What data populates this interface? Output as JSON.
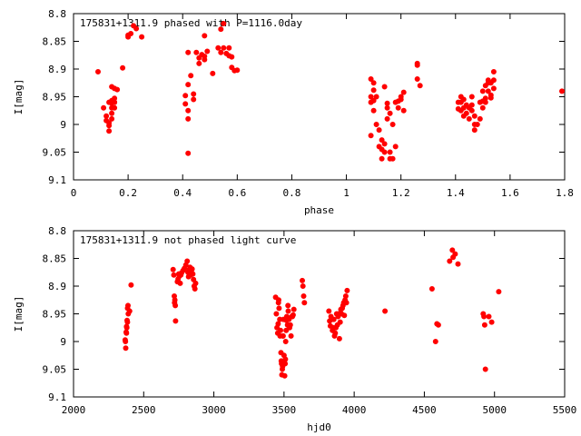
{
  "chart_data": [
    {
      "type": "scatter",
      "title": "175831+1311.9 phased with P=1116.0day",
      "xlabel": "phase",
      "ylabel": "I[mag]",
      "xlim": [
        0,
        1.8
      ],
      "ylim": [
        8.8,
        9.1
      ],
      "y_inverted": true,
      "grid": false,
      "legend": "none",
      "marker": "filled-circle",
      "color": "#ff0000",
      "xticks": [
        "0",
        "0.2",
        "0.4",
        "0.6",
        "0.8",
        "1",
        "1.2",
        "1.4",
        "1.6",
        "1.8"
      ],
      "yticks": [
        "8.8",
        "8.85",
        "8.9",
        "8.95",
        "9",
        "9.05",
        "9.1"
      ],
      "points": [
        [
          0.09,
          8.905
        ],
        [
          0.11,
          8.97
        ],
        [
          0.12,
          8.985
        ],
        [
          0.12,
          8.993
        ],
        [
          0.13,
          8.997
        ],
        [
          0.13,
          9.002
        ],
        [
          0.13,
          9.012
        ],
        [
          0.13,
          8.96
        ],
        [
          0.14,
          8.957
        ],
        [
          0.14,
          8.962
        ],
        [
          0.14,
          8.97
        ],
        [
          0.14,
          8.98
        ],
        [
          0.14,
          8.99
        ],
        [
          0.15,
          8.953
        ],
        [
          0.15,
          8.96
        ],
        [
          0.15,
          8.97
        ],
        [
          0.15,
          8.96
        ],
        [
          0.14,
          8.932
        ],
        [
          0.15,
          8.935
        ],
        [
          0.16,
          8.937
        ],
        [
          0.18,
          8.898
        ],
        [
          0.2,
          8.839
        ],
        [
          0.2,
          8.842
        ],
        [
          0.21,
          8.836
        ],
        [
          0.22,
          8.822
        ],
        [
          0.23,
          8.827
        ],
        [
          0.25,
          8.842
        ],
        [
          0.41,
          8.948
        ],
        [
          0.41,
          8.963
        ],
        [
          0.42,
          8.99
        ],
        [
          0.42,
          8.975
        ],
        [
          0.42,
          8.928
        ],
        [
          0.42,
          8.87
        ],
        [
          0.43,
          8.912
        ],
        [
          0.42,
          9.052
        ],
        [
          0.44,
          8.955
        ],
        [
          0.44,
          8.945
        ],
        [
          0.45,
          8.87
        ],
        [
          0.46,
          8.88
        ],
        [
          0.46,
          8.89
        ],
        [
          0.47,
          8.874
        ],
        [
          0.48,
          8.877
        ],
        [
          0.48,
          8.84
        ],
        [
          0.48,
          8.883
        ],
        [
          0.49,
          8.868
        ],
        [
          0.51,
          8.908
        ],
        [
          0.53,
          8.862
        ],
        [
          0.54,
          8.87
        ],
        [
          0.54,
          8.828
        ],
        [
          0.55,
          8.818
        ],
        [
          0.55,
          8.862
        ],
        [
          0.56,
          8.872
        ],
        [
          0.57,
          8.876
        ],
        [
          0.57,
          8.862
        ],
        [
          0.58,
          8.878
        ],
        [
          0.58,
          8.897
        ],
        [
          0.59,
          8.903
        ],
        [
          0.6,
          8.902
        ],
        [
          1.09,
          8.96
        ],
        [
          1.09,
          8.95
        ],
        [
          1.09,
          9.02
        ],
        [
          1.09,
          8.918
        ],
        [
          1.1,
          8.957
        ],
        [
          1.1,
          8.975
        ],
        [
          1.1,
          8.925
        ],
        [
          1.1,
          8.938
        ],
        [
          1.11,
          9.0
        ],
        [
          1.11,
          8.95
        ],
        [
          1.12,
          9.04
        ],
        [
          1.12,
          9.01
        ],
        [
          1.13,
          9.045
        ],
        [
          1.13,
          9.062
        ],
        [
          1.13,
          9.028
        ],
        [
          1.14,
          9.05
        ],
        [
          1.14,
          9.035
        ],
        [
          1.14,
          8.932
        ],
        [
          1.15,
          8.99
        ],
        [
          1.15,
          8.97
        ],
        [
          1.15,
          8.962
        ],
        [
          1.16,
          8.98
        ],
        [
          1.16,
          9.05
        ],
        [
          1.16,
          9.062
        ],
        [
          1.17,
          9.0
        ],
        [
          1.17,
          9.062
        ],
        [
          1.18,
          9.04
        ],
        [
          1.18,
          8.96
        ],
        [
          1.19,
          8.97
        ],
        [
          1.19,
          8.958
        ],
        [
          1.2,
          8.955
        ],
        [
          1.2,
          8.95
        ],
        [
          1.21,
          8.975
        ],
        [
          1.21,
          8.942
        ],
        [
          1.26,
          8.89
        ],
        [
          1.26,
          8.893
        ],
        [
          1.26,
          8.918
        ],
        [
          1.27,
          8.93
        ],
        [
          1.41,
          8.96
        ],
        [
          1.41,
          8.972
        ],
        [
          1.42,
          8.95
        ],
        [
          1.42,
          8.96
        ],
        [
          1.42,
          8.975
        ],
        [
          1.43,
          8.985
        ],
        [
          1.43,
          8.955
        ],
        [
          1.43,
          8.97
        ],
        [
          1.44,
          8.965
        ],
        [
          1.44,
          8.98
        ],
        [
          1.45,
          8.99
        ],
        [
          1.45,
          8.97
        ],
        [
          1.46,
          8.95
        ],
        [
          1.46,
          8.965
        ],
        [
          1.46,
          8.975
        ],
        [
          1.47,
          8.985
        ],
        [
          1.47,
          9.0
        ],
        [
          1.47,
          9.01
        ],
        [
          1.48,
          9.0
        ],
        [
          1.49,
          8.99
        ],
        [
          1.49,
          8.96
        ],
        [
          1.5,
          8.94
        ],
        [
          1.5,
          8.958
        ],
        [
          1.5,
          8.97
        ],
        [
          1.51,
          8.953
        ],
        [
          1.51,
          8.96
        ],
        [
          1.51,
          8.93
        ],
        [
          1.52,
          8.94
        ],
        [
          1.52,
          8.925
        ],
        [
          1.52,
          8.92
        ],
        [
          1.53,
          8.952
        ],
        [
          1.53,
          8.947
        ],
        [
          1.53,
          8.925
        ],
        [
          1.54,
          8.935
        ],
        [
          1.54,
          8.92
        ],
        [
          1.54,
          8.905
        ],
        [
          1.79,
          8.94
        ]
      ]
    },
    {
      "type": "scatter",
      "title": "175831+1311.9 not phased light curve",
      "xlabel": "hjd0",
      "ylabel": "I[mag]",
      "xlim": [
        2000,
        5500
      ],
      "ylim": [
        8.8,
        9.1
      ],
      "y_inverted": true,
      "grid": false,
      "legend": "none",
      "marker": "filled-circle",
      "color": "#ff0000",
      "xticks": [
        "2000",
        "2500",
        "3000",
        "3500",
        "4000",
        "4500",
        "5000",
        "5500"
      ],
      "yticks": [
        "8.8",
        "8.85",
        "8.9",
        "8.95",
        "9",
        "9.05",
        "9.1"
      ],
      "points": [
        [
          2368,
          8.997
        ],
        [
          2370,
          9.0
        ],
        [
          2372,
          9.012
        ],
        [
          2375,
          8.983
        ],
        [
          2377,
          8.985
        ],
        [
          2378,
          8.973
        ],
        [
          2380,
          8.975
        ],
        [
          2382,
          8.962
        ],
        [
          2384,
          8.965
        ],
        [
          2385,
          8.94
        ],
        [
          2388,
          8.935
        ],
        [
          2390,
          8.95
        ],
        [
          2400,
          8.945
        ],
        [
          2410,
          8.898
        ],
        [
          2710,
          8.87
        ],
        [
          2715,
          8.88
        ],
        [
          2718,
          8.918
        ],
        [
          2720,
          8.93
        ],
        [
          2722,
          8.925
        ],
        [
          2725,
          8.935
        ],
        [
          2727,
          8.963
        ],
        [
          2740,
          8.892
        ],
        [
          2745,
          8.887
        ],
        [
          2750,
          8.878
        ],
        [
          2755,
          8.882
        ],
        [
          2760,
          8.895
        ],
        [
          2765,
          8.88
        ],
        [
          2770,
          8.876
        ],
        [
          2780,
          8.872
        ],
        [
          2790,
          8.868
        ],
        [
          2800,
          8.862
        ],
        [
          2810,
          8.855
        ],
        [
          2815,
          8.875
        ],
        [
          2820,
          8.883
        ],
        [
          2825,
          8.87
        ],
        [
          2830,
          8.866
        ],
        [
          2835,
          8.88
        ],
        [
          2840,
          8.872
        ],
        [
          2845,
          8.869
        ],
        [
          2850,
          8.878
        ],
        [
          2855,
          8.888
        ],
        [
          2860,
          8.9
        ],
        [
          2865,
          8.905
        ],
        [
          2870,
          8.895
        ],
        [
          3440,
          8.92
        ],
        [
          3445,
          8.95
        ],
        [
          3450,
          8.975
        ],
        [
          3455,
          8.985
        ],
        [
          3458,
          8.968
        ],
        [
          3460,
          8.93
        ],
        [
          3462,
          8.925
        ],
        [
          3465,
          8.94
        ],
        [
          3470,
          8.96
        ],
        [
          3472,
          8.99
        ],
        [
          3475,
          8.98
        ],
        [
          3478,
          9.02
        ],
        [
          3480,
          9.035
        ],
        [
          3482,
          9.04
        ],
        [
          3485,
          9.06
        ],
        [
          3488,
          9.05
        ],
        [
          3490,
          9.045
        ],
        [
          3492,
          8.99
        ],
        [
          3494,
          8.99
        ],
        [
          3496,
          8.96
        ],
        [
          3500,
          9.025
        ],
        [
          3505,
          9.062
        ],
        [
          3508,
          9.04
        ],
        [
          3510,
          9.032
        ],
        [
          3512,
          9.0
        ],
        [
          3515,
          8.98
        ],
        [
          3518,
          8.962
        ],
        [
          3520,
          8.955
        ],
        [
          3525,
          8.97
        ],
        [
          3528,
          8.935
        ],
        [
          3530,
          8.945
        ],
        [
          3535,
          8.96
        ],
        [
          3540,
          8.975
        ],
        [
          3545,
          8.97
        ],
        [
          3550,
          8.99
        ],
        [
          3555,
          8.955
        ],
        [
          3560,
          8.955
        ],
        [
          3565,
          8.952
        ],
        [
          3570,
          8.942
        ],
        [
          3630,
          8.89
        ],
        [
          3635,
          8.9
        ],
        [
          3640,
          8.918
        ],
        [
          3645,
          8.93
        ],
        [
          3820,
          8.945
        ],
        [
          3825,
          8.963
        ],
        [
          3830,
          8.972
        ],
        [
          3835,
          8.955
        ],
        [
          3840,
          8.96
        ],
        [
          3845,
          8.98
        ],
        [
          3850,
          8.975
        ],
        [
          3855,
          8.96
        ],
        [
          3860,
          8.99
        ],
        [
          3865,
          8.985
        ],
        [
          3870,
          8.975
        ],
        [
          3875,
          8.95
        ],
        [
          3880,
          8.97
        ],
        [
          3885,
          8.955
        ],
        [
          3890,
          8.95
        ],
        [
          3895,
          8.995
        ],
        [
          3900,
          8.965
        ],
        [
          3905,
          8.942
        ],
        [
          3910,
          8.95
        ],
        [
          3915,
          8.94
        ],
        [
          3920,
          8.935
        ],
        [
          3925,
          8.93
        ],
        [
          3930,
          8.953
        ],
        [
          3935,
          8.925
        ],
        [
          3940,
          8.918
        ],
        [
          3945,
          8.93
        ],
        [
          3950,
          8.908
        ],
        [
          4220,
          8.945
        ],
        [
          4555,
          8.905
        ],
        [
          4580,
          9.0
        ],
        [
          4590,
          8.968
        ],
        [
          4600,
          8.97
        ],
        [
          4680,
          8.855
        ],
        [
          4700,
          8.835
        ],
        [
          4705,
          8.848
        ],
        [
          4720,
          8.842
        ],
        [
          4740,
          8.86
        ],
        [
          4920,
          8.95
        ],
        [
          4925,
          8.955
        ],
        [
          4930,
          8.97
        ],
        [
          4935,
          9.05
        ],
        [
          4960,
          8.955
        ],
        [
          4980,
          8.965
        ],
        [
          5030,
          8.91
        ]
      ]
    }
  ]
}
